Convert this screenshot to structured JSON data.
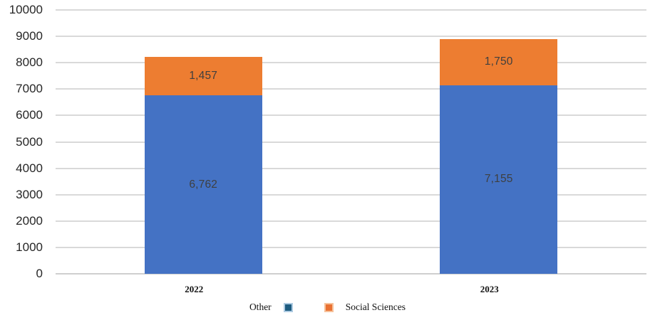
{
  "chart_data": {
    "type": "bar",
    "stacked": true,
    "title": "",
    "xlabel": "",
    "ylabel": "",
    "categories": [
      "2022",
      "2023"
    ],
    "series": [
      {
        "name": "Other",
        "color": "#4472c4",
        "values": [
          6762,
          7155
        ],
        "labels": [
          "6,762",
          "7,155"
        ]
      },
      {
        "name": "Social Sciences",
        "color": "#ed7d31",
        "values": [
          1457,
          1750
        ],
        "labels": [
          "1,457",
          "1,750"
        ]
      }
    ],
    "totals": [
      8219,
      8905
    ],
    "ylim": [
      0,
      10000
    ],
    "ytick_step": 1000,
    "yticks": [
      {
        "v": 0,
        "label": "0"
      },
      {
        "v": 1000,
        "label": "1000"
      },
      {
        "v": 2000,
        "label": "2000"
      },
      {
        "v": 3000,
        "label": "3000"
      },
      {
        "v": 4000,
        "label": "4000"
      },
      {
        "v": 5000,
        "label": "5000"
      },
      {
        "v": 6000,
        "label": "6000"
      },
      {
        "v": 7000,
        "label": "7000"
      },
      {
        "v": 8000,
        "label": "8000"
      },
      {
        "v": 9000,
        "label": "9000"
      },
      {
        "v": 10000,
        "label": "10000"
      }
    ],
    "grid": true,
    "gridline_color": "#d9d9d9",
    "value_label_color": "#3f3f3f",
    "axis_text_color": "#262626",
    "legend_position": "bottom",
    "legend": {
      "items": [
        {
          "label": "Other",
          "marker_color": "#1d5c80",
          "marker_border": "#aecbe2",
          "marker_after_text": true
        },
        {
          "label": "Social Sciences",
          "marker_color": "#e97132",
          "marker_border": "#f6c29b",
          "marker_after_text": false
        }
      ]
    }
  }
}
